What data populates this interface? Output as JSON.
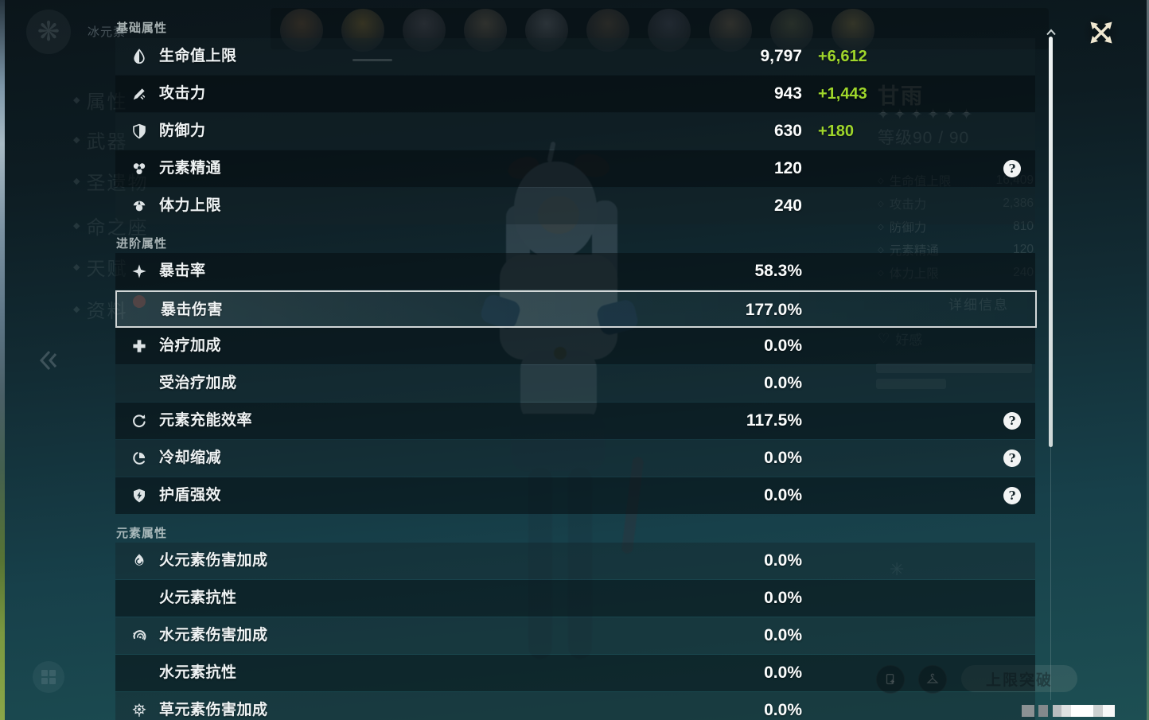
{
  "colors": {
    "bonus_green": "#9fd62b",
    "highlight_border": "#e1e4e4",
    "backdrop_teal": "#17404a"
  },
  "overlay": {
    "sections": [
      {
        "title": "基础属性",
        "rows": [
          {
            "icon": "hp-icon",
            "label": "生命值上限",
            "value": "9,797",
            "bonus": "+6,612"
          },
          {
            "icon": "atk-icon",
            "label": "攻击力",
            "value": "943",
            "bonus": "+1,443"
          },
          {
            "icon": "def-icon",
            "label": "防御力",
            "value": "630",
            "bonus": "+180"
          },
          {
            "icon": "elemental-mastery-icon",
            "label": "元素精通",
            "value": "120",
            "help": true
          },
          {
            "icon": "stamina-icon",
            "label": "体力上限",
            "value": "240"
          }
        ]
      },
      {
        "title": "进阶属性",
        "rows": [
          {
            "icon": "crit-rate-icon",
            "label": "暴击率",
            "value": "58.3%"
          },
          {
            "icon": "",
            "label": "暴击伤害",
            "value": "177.0%",
            "highlighted": true
          },
          {
            "icon": "healing-bonus-icon",
            "label": "治疗加成",
            "value": "0.0%"
          },
          {
            "icon": "",
            "label": "受治疗加成",
            "value": "0.0%"
          },
          {
            "icon": "energy-recharge-icon",
            "label": "元素充能效率",
            "value": "117.5%",
            "help": true
          },
          {
            "icon": "cd-reduction-icon",
            "label": "冷却缩减",
            "value": "0.0%",
            "help": true
          },
          {
            "icon": "shield-strength-icon",
            "label": "护盾强效",
            "value": "0.0%",
            "help": true
          }
        ]
      },
      {
        "title": "元素属性",
        "rows": [
          {
            "icon": "pyro-icon",
            "label": "火元素伤害加成",
            "value": "0.0%"
          },
          {
            "icon": "",
            "label": "火元素抗性",
            "value": "0.0%"
          },
          {
            "icon": "hydro-icon",
            "label": "水元素伤害加成",
            "value": "0.0%"
          },
          {
            "icon": "",
            "label": "水元素抗性",
            "value": "0.0%"
          },
          {
            "icon": "dendro-icon",
            "label": "草元素伤害加成",
            "value": "0.0%"
          }
        ]
      }
    ]
  },
  "background": {
    "element_label": "冰元素",
    "nav_items": [
      "属性",
      "武器",
      "圣遗物",
      "命之座",
      "天赋",
      "资料"
    ],
    "party_avatar_count": 10,
    "character": {
      "name": "甘雨",
      "rarity_stars": 6,
      "level_label": "等级90 / 90",
      "stats": [
        {
          "label": "生命值上限",
          "value": "16,409"
        },
        {
          "label": "攻击力",
          "value": "2,386"
        },
        {
          "label": "防御力",
          "value": "810"
        },
        {
          "label": "元素精通",
          "value": "120"
        },
        {
          "label": "体力上限",
          "value": "240"
        }
      ],
      "details_label": "详细信息",
      "friendship_label": "好感"
    },
    "ascend_label": "上限突破"
  },
  "censor_blocks": [
    {
      "w": 16,
      "c": "#8b9193"
    },
    {
      "w": 5,
      "c": "transparent"
    },
    {
      "w": 12,
      "c": "#83898c"
    },
    {
      "w": 6,
      "c": "transparent"
    },
    {
      "w": 11,
      "c": "#b9bdbf"
    },
    {
      "w": 12,
      "c": "#dfe1e1"
    },
    {
      "w": 28,
      "c": "#ffffff"
    },
    {
      "w": 12,
      "c": "#cdd1d1"
    },
    {
      "w": 15,
      "c": "#f7f8f8"
    }
  ]
}
